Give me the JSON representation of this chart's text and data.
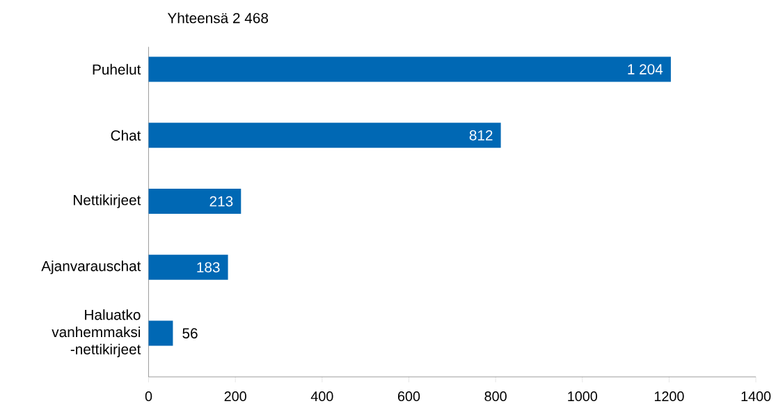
{
  "chart_data": {
    "type": "bar",
    "orientation": "horizontal",
    "title": "Yhteensä 2 468",
    "categories": [
      "Puhelut",
      "Chat",
      "Nettikirjeet",
      "Ajanvarauschat",
      "Haluatko vanhemmaksi -nettikirjeet"
    ],
    "values": [
      1204,
      812,
      213,
      183,
      56
    ],
    "value_labels": [
      "1 204",
      "812",
      "213",
      "183",
      "56"
    ],
    "color": "#0068b4",
    "xlim": [
      0,
      1400
    ],
    "xticks": [
      0,
      200,
      400,
      600,
      800,
      1000,
      1200,
      1400
    ]
  }
}
